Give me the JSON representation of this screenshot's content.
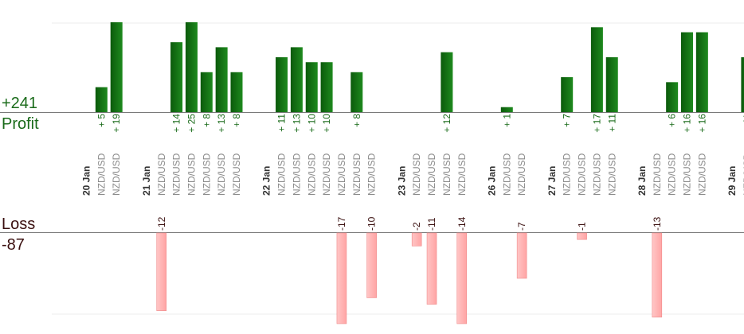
{
  "summary": {
    "profit_total": "+241",
    "profit_label": "Profit",
    "loss_label": "Loss",
    "loss_total": "-87"
  },
  "colors": {
    "profit_bar_dark": "#0b5a0b",
    "profit_bar_light": "#1e8a1e",
    "loss_bar": "#ffb3b3",
    "loss_bar_edge": "#f08a8a",
    "profit_text": "#1a6b1a",
    "loss_text": "#3a0f0f",
    "slot_label": "#8a8a8a",
    "date_label": "#333333"
  },
  "chart_data": {
    "type": "bar",
    "profit_scale_max": 18,
    "loss_scale_max": 14,
    "slots": [
      {
        "kind": "date",
        "label": "20 Jan"
      },
      {
        "kind": "trade",
        "label": "NZD/USD",
        "value": 5
      },
      {
        "kind": "trade",
        "label": "NZD/USD",
        "value": 19
      },
      {
        "kind": "gap"
      },
      {
        "kind": "date",
        "label": "21 Jan"
      },
      {
        "kind": "trade",
        "label": "NZD/USD",
        "value": -12
      },
      {
        "kind": "trade",
        "label": "NZD/USD",
        "value": 14
      },
      {
        "kind": "trade",
        "label": "NZD/USD",
        "value": 25
      },
      {
        "kind": "trade",
        "label": "NZD/USD",
        "value": 8
      },
      {
        "kind": "trade",
        "label": "NZD/USD",
        "value": 13
      },
      {
        "kind": "trade",
        "label": "NZD/USD",
        "value": 8
      },
      {
        "kind": "gap"
      },
      {
        "kind": "date",
        "label": "22 Jan"
      },
      {
        "kind": "trade",
        "label": "NZD/USD",
        "value": 11
      },
      {
        "kind": "trade",
        "label": "NZD/USD",
        "value": 13
      },
      {
        "kind": "trade",
        "label": "NZD/USD",
        "value": 10
      },
      {
        "kind": "trade",
        "label": "NZD/USD",
        "value": 10
      },
      {
        "kind": "trade",
        "label": "NZD/USD",
        "value": -17
      },
      {
        "kind": "trade",
        "label": "NZD/USD",
        "value": 8
      },
      {
        "kind": "trade",
        "label": "NZD/USD",
        "value": -10
      },
      {
        "kind": "gap"
      },
      {
        "kind": "date",
        "label": "23 Jan"
      },
      {
        "kind": "trade",
        "label": "NZD/USD",
        "value": -2
      },
      {
        "kind": "trade",
        "label": "NZD/USD",
        "value": -11
      },
      {
        "kind": "trade",
        "label": "NZD/USD",
        "value": 12
      },
      {
        "kind": "trade",
        "label": "NZD/USD",
        "value": -14
      },
      {
        "kind": "gap"
      },
      {
        "kind": "date",
        "label": "26 Jan"
      },
      {
        "kind": "trade",
        "label": "NZD/USD",
        "value": 1
      },
      {
        "kind": "trade",
        "label": "NZD/USD",
        "value": -7
      },
      {
        "kind": "gap"
      },
      {
        "kind": "date",
        "label": "27 Jan"
      },
      {
        "kind": "trade",
        "label": "NZD/USD",
        "value": 7
      },
      {
        "kind": "trade",
        "label": "NZD/USD",
        "value": -1
      },
      {
        "kind": "trade",
        "label": "NZD/USD",
        "value": 17
      },
      {
        "kind": "trade",
        "label": "NZD/USD",
        "value": 11
      },
      {
        "kind": "gap"
      },
      {
        "kind": "date",
        "label": "28 Jan"
      },
      {
        "kind": "trade",
        "label": "NZD/USD",
        "value": -13
      },
      {
        "kind": "trade",
        "label": "NZD/USD",
        "value": 6
      },
      {
        "kind": "trade",
        "label": "NZD/USD",
        "value": 16
      },
      {
        "kind": "trade",
        "label": "NZD/USD",
        "value": 16
      },
      {
        "kind": "gap"
      },
      {
        "kind": "date",
        "label": "29 Jan"
      },
      {
        "kind": "trade",
        "label": "NZD/USD",
        "value": 11
      }
    ]
  }
}
